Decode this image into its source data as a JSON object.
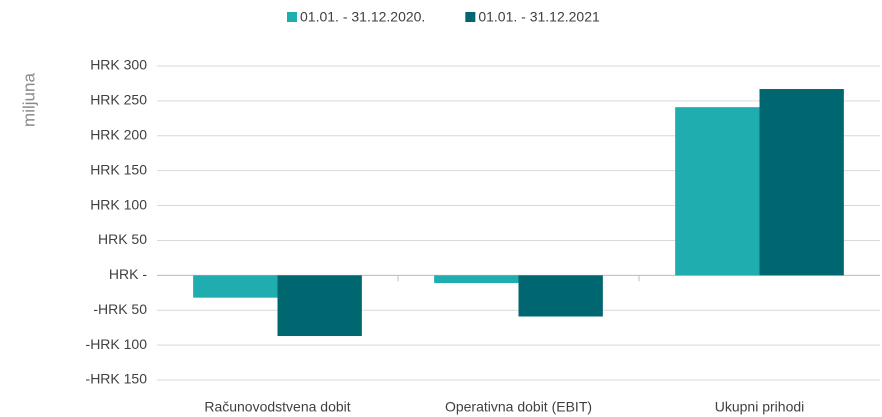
{
  "chart_data": {
    "type": "bar",
    "y_label": "miljuna",
    "categories": [
      "Računovodstvena dobit",
      "Operativna dobit (EBIT)",
      "Ukupni prihodi"
    ],
    "series": [
      {
        "name": "01.01. - 31.12.2020.",
        "color": "#20adb0",
        "values": [
          -32,
          -11,
          241
        ]
      },
      {
        "name": "01.01. - 31.12.2021",
        "color": "#006670",
        "values": [
          -87,
          -59,
          267
        ]
      }
    ],
    "ylim": [
      -150,
      300
    ],
    "yticks": [
      {
        "value": -150,
        "label": "-HRK 150"
      },
      {
        "value": -100,
        "label": "-HRK 100"
      },
      {
        "value": -50,
        "label": "-HRK 50"
      },
      {
        "value": 0,
        "label": "HRK -"
      },
      {
        "value": 50,
        "label": "HRK 50"
      },
      {
        "value": 100,
        "label": "HRK 100"
      },
      {
        "value": 150,
        "label": "HRK 150"
      },
      {
        "value": 200,
        "label": "HRK 200"
      },
      {
        "value": 250,
        "label": "HRK 250"
      },
      {
        "value": 300,
        "label": "HRK 300"
      }
    ],
    "grid": true
  }
}
